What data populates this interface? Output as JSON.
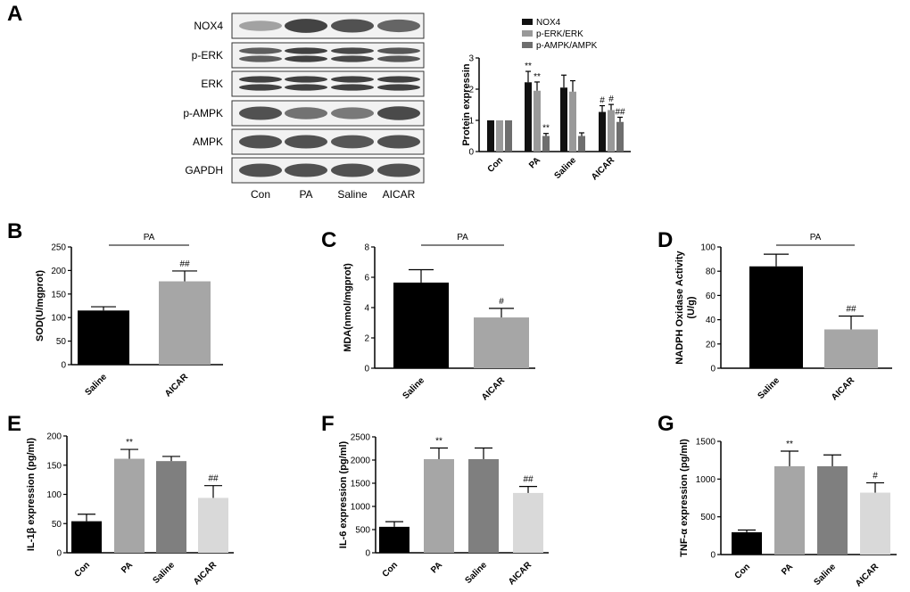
{
  "panels": {
    "A": {
      "letter": "A"
    },
    "B": {
      "letter": "B"
    },
    "C": {
      "letter": "C"
    },
    "D": {
      "letter": "D"
    },
    "E": {
      "letter": "E"
    },
    "F": {
      "letter": "F"
    },
    "G": {
      "letter": "G"
    }
  },
  "western_blot": {
    "proteins": [
      "NOX4",
      "p-ERK",
      "ERK",
      "p-AMPK",
      "AMPK",
      "GAPDH"
    ],
    "lanes": [
      "Con",
      "PA",
      "Saline",
      "AICAR"
    ]
  },
  "chart_data": [
    {
      "id": "A",
      "type": "bar",
      "categories": [
        "Con",
        "PA",
        "Saline",
        "AICAR"
      ],
      "ylabel": "Protein expressin",
      "ylim": [
        0,
        3
      ],
      "yticks": [
        "0",
        "1",
        "2",
        "3"
      ],
      "legend": "top-right",
      "colors": [
        "#111111",
        "#999999",
        "#6e6e6e"
      ],
      "series": [
        {
          "name": "NOX4",
          "values": [
            1.0,
            2.22,
            2.05,
            1.27
          ],
          "errors": [
            0,
            0.35,
            0.4,
            0.2
          ],
          "sig": [
            "",
            "**",
            "",
            "#"
          ]
        },
        {
          "name": "p-ERK/ERK",
          "values": [
            1.0,
            1.95,
            1.92,
            1.33
          ],
          "errors": [
            0,
            0.28,
            0.35,
            0.18
          ],
          "sig": [
            "",
            "**",
            "",
            "#"
          ]
        },
        {
          "name": "p-AMPK/AMPK",
          "values": [
            1.0,
            0.5,
            0.5,
            0.95
          ],
          "errors": [
            0,
            0.08,
            0.1,
            0.15
          ],
          "sig": [
            "",
            "**",
            "",
            "##"
          ]
        }
      ]
    },
    {
      "id": "B",
      "type": "bar",
      "categories": [
        "Saline",
        "AICAR"
      ],
      "values": [
        115,
        177
      ],
      "errors": [
        8,
        22
      ],
      "sig": [
        "",
        "##"
      ],
      "ylabel": "SOD(U/mgprot)",
      "ylim": [
        0,
        250
      ],
      "yticks": [
        "0",
        "50",
        "100",
        "150",
        "200",
        "250"
      ],
      "bracket_label": "PA",
      "colors": [
        "#000000",
        "#a6a6a6"
      ]
    },
    {
      "id": "C",
      "type": "bar",
      "categories": [
        "Saline",
        "AICAR"
      ],
      "values": [
        5.65,
        3.35
      ],
      "errors": [
        0.85,
        0.6
      ],
      "sig": [
        "",
        "#"
      ],
      "ylabel": "MDA(nmol/mgprot)",
      "ylim": [
        0,
        8
      ],
      "yticks": [
        "0",
        "2",
        "4",
        "6",
        "8"
      ],
      "bracket_label": "PA",
      "colors": [
        "#000000",
        "#a6a6a6"
      ]
    },
    {
      "id": "D",
      "type": "bar",
      "categories": [
        "Saline",
        "AICAR"
      ],
      "values": [
        84,
        32
      ],
      "errors": [
        10,
        11
      ],
      "sig": [
        "",
        "##"
      ],
      "ylabel": "NADPH Oxidase Activity (U/g)",
      "ylabel_lines": [
        "NADPH Oxidase Activity",
        "(U/g)"
      ],
      "ylim": [
        0,
        100
      ],
      "yticks": [
        "0",
        "20",
        "40",
        "60",
        "80",
        "100"
      ],
      "bracket_label": "PA",
      "colors": [
        "#000000",
        "#a6a6a6"
      ]
    },
    {
      "id": "E",
      "type": "bar",
      "categories": [
        "Con",
        "PA",
        "Saline",
        "AICAR"
      ],
      "values": [
        54,
        161,
        157,
        94
      ],
      "errors": [
        12,
        16,
        8,
        21
      ],
      "sig": [
        "",
        "**",
        "",
        "##"
      ],
      "ylabel": "IL-1β expression (pg/ml)",
      "ylim": [
        0,
        200
      ],
      "yticks": [
        "0",
        "50",
        "100",
        "150",
        "200"
      ],
      "colors": [
        "#000000",
        "#a6a6a6",
        "#7f7f7f",
        "#d9d9d9"
      ]
    },
    {
      "id": "F",
      "type": "bar",
      "categories": [
        "Con",
        "PA",
        "Saline",
        "AICAR"
      ],
      "values": [
        560,
        2020,
        2020,
        1290
      ],
      "errors": [
        110,
        240,
        240,
        140
      ],
      "sig": [
        "",
        "**",
        "",
        "##"
      ],
      "ylabel": "IL-6 expression (pg/ml)",
      "ylim": [
        0,
        2500
      ],
      "yticks": [
        "0",
        "500",
        "1000",
        "1500",
        "2000",
        "2500"
      ],
      "colors": [
        "#000000",
        "#a6a6a6",
        "#7f7f7f",
        "#d9d9d9"
      ]
    },
    {
      "id": "G",
      "type": "bar",
      "categories": [
        "Con",
        "PA",
        "Saline",
        "AICAR"
      ],
      "values": [
        295,
        1170,
        1170,
        820
      ],
      "errors": [
        30,
        200,
        150,
        130
      ],
      "sig": [
        "",
        "**",
        "",
        "#"
      ],
      "ylabel": "TNF-α expression (pg/ml)",
      "ylim": [
        0,
        1500
      ],
      "yticks": [
        "0",
        "500",
        "1000",
        "1500"
      ],
      "colors": [
        "#000000",
        "#a6a6a6",
        "#7f7f7f",
        "#d9d9d9"
      ]
    }
  ]
}
